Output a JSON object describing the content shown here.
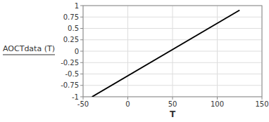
{
  "chart_data": {
    "type": "line",
    "x_label": "T",
    "y_label": "AOCTdata (T)",
    "x": [
      -40,
      125
    ],
    "series": [
      {
        "color": "#000000",
        "values": [
          -1.0,
          0.9
        ]
      }
    ],
    "xlim": [
      -50,
      150
    ],
    "ylim": [
      -1,
      1
    ],
    "xticks": [
      -50,
      0,
      50,
      100,
      150
    ],
    "yticks": [
      -1,
      -0.75,
      -0.5,
      -0.25,
      0,
      0.25,
      0.5,
      0.75,
      1
    ],
    "grid": true
  }
}
